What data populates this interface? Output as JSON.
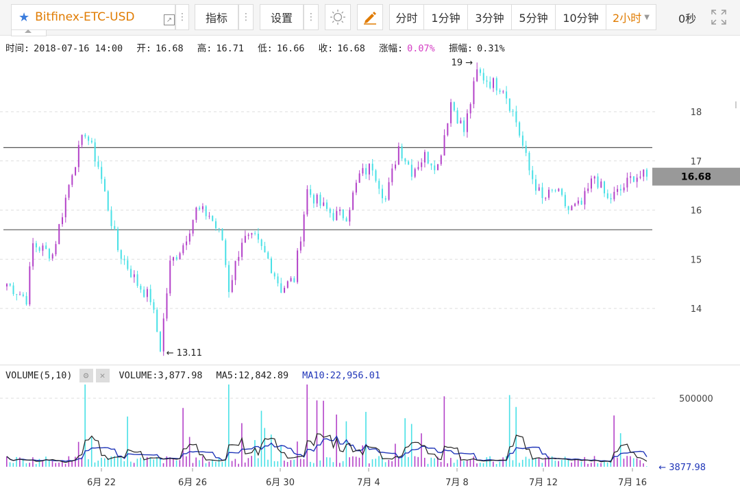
{
  "toolbar": {
    "symbol": "Bitfinex-ETC-USD",
    "star_icon": "star-icon",
    "external_icon": "external-link-icon",
    "indicator_label": "指标",
    "settings_label": "设置",
    "theme_icon": "sun-icon",
    "draw_icon": "pencil-icon",
    "periods": [
      "分时",
      "1分钟",
      "3分钟",
      "5分钟",
      "10分钟",
      "2小时"
    ],
    "active_period": "2小时",
    "countdown": "0秒",
    "fullscreen_icon": "fullscreen-icon"
  },
  "info": {
    "time_label": "时间:",
    "time": "2018-07-16 14:00",
    "open_label": "开:",
    "open": "16.68",
    "high_label": "高:",
    "high": "16.71",
    "low_label": "低:",
    "low": "16.66",
    "close_label": "收:",
    "close": "16.68",
    "change_label": "涨幅:",
    "change": "0.07%",
    "amplitude_label": "振幅:",
    "amplitude": "0.31%"
  },
  "volume_header": {
    "title": "VOLUME(5,10)",
    "volume_label": "VOLUME:",
    "volume": "3,877.98",
    "ma5_label": "MA5:",
    "ma5": "12,842.89",
    "ma10_label": "MA10:",
    "ma10": "22,956.01",
    "settings_icon": "gear-icon",
    "close_icon": "close-icon"
  },
  "colors": {
    "up": "#b341c8",
    "down": "#47e0e6",
    "ma5": "#222222",
    "ma10": "#1f35b8",
    "accent": "#e07b00"
  },
  "chart_data": {
    "type": "candlestick",
    "price_axis": {
      "ticks": [
        "14",
        "15",
        "16",
        "17",
        "18"
      ],
      "range": [
        13.0,
        19.2
      ]
    },
    "current_price": "16.68",
    "max_marker": "19",
    "min_marker": "13.11",
    "horizontal_lines": [
      17.27,
      15.6
    ],
    "x_ticks": [
      "6月 22",
      "6月 26",
      "6月 30",
      "7月 4",
      "7月 8",
      "7月 12",
      "7月 16"
    ],
    "anchor_closes": [
      [
        0,
        14.5
      ],
      [
        6,
        14.2
      ],
      [
        8,
        15.3
      ],
      [
        14,
        15.1
      ],
      [
        20,
        16.8
      ],
      [
        24,
        17.6
      ],
      [
        28,
        16.9
      ],
      [
        34,
        15.2
      ],
      [
        40,
        14.5
      ],
      [
        44,
        14.2
      ],
      [
        47,
        13.2
      ],
      [
        50,
        14.9
      ],
      [
        54,
        15.3
      ],
      [
        58,
        16.0
      ],
      [
        62,
        15.9
      ],
      [
        66,
        15.4
      ],
      [
        68,
        14.4
      ],
      [
        72,
        15.4
      ],
      [
        76,
        15.4
      ],
      [
        80,
        15.0
      ],
      [
        84,
        14.4
      ],
      [
        88,
        14.6
      ],
      [
        92,
        16.4
      ],
      [
        96,
        16.1
      ],
      [
        100,
        15.9
      ],
      [
        104,
        15.9
      ],
      [
        108,
        16.7
      ],
      [
        112,
        16.9
      ],
      [
        116,
        16.2
      ],
      [
        120,
        17.3
      ],
      [
        124,
        16.8
      ],
      [
        128,
        17.1
      ],
      [
        132,
        16.9
      ],
      [
        136,
        18.2
      ],
      [
        140,
        17.6
      ],
      [
        144,
        18.8
      ],
      [
        148,
        18.6
      ],
      [
        152,
        18.5
      ],
      [
        156,
        17.8
      ],
      [
        160,
        16.8
      ],
      [
        164,
        16.2
      ],
      [
        168,
        16.4
      ],
      [
        172,
        16.0
      ],
      [
        176,
        16.1
      ],
      [
        180,
        16.7
      ],
      [
        184,
        16.2
      ],
      [
        188,
        16.4
      ],
      [
        192,
        16.7
      ],
      [
        196,
        16.68
      ]
    ],
    "volume_axis": {
      "tick": "500000",
      "range": [
        0,
        700000
      ]
    },
    "current_volume": "3877.98"
  }
}
